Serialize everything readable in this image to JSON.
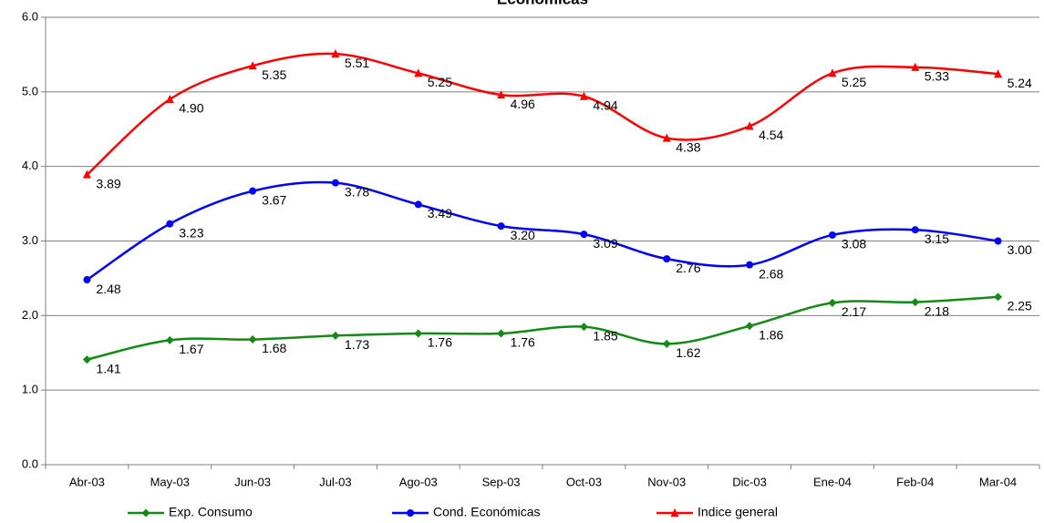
{
  "chart_data": {
    "type": "line",
    "title": "Económicas",
    "categories": [
      "Abr-03",
      "May-03",
      "Jun-03",
      "Jul-03",
      "Ago-03",
      "Sep-03",
      "Oct-03",
      "Nov-03",
      "Dic-03",
      "Ene-04",
      "Feb-04",
      "Mar-04"
    ],
    "series": [
      {
        "name": "Exp. Consumo",
        "color": "#138a13",
        "marker": "diamond",
        "values": [
          1.41,
          1.67,
          1.68,
          1.73,
          1.76,
          1.76,
          1.85,
          1.62,
          1.86,
          2.17,
          2.18,
          2.25
        ],
        "value_labels": [
          "1.41",
          "1.67",
          "1.68",
          "1.73",
          "1.76",
          "1.76",
          "1.85",
          "1.62",
          "1.86",
          "2.17",
          "2.18",
          "2.25"
        ]
      },
      {
        "name": "Cond. Económicas",
        "color": "#0000ff",
        "marker": "circle",
        "values": [
          2.48,
          3.23,
          3.67,
          3.78,
          3.49,
          3.2,
          3.09,
          2.76,
          2.68,
          3.08,
          3.15,
          3.0
        ],
        "value_labels": [
          "2.48",
          "3.23",
          "3.67",
          "3.78",
          "3.49",
          "3.20",
          "3.09",
          "2.76",
          "2.68",
          "3.08",
          "3.15",
          "3.00"
        ]
      },
      {
        "name": "Indice general",
        "color": "#ff0000",
        "marker": "triangle",
        "values": [
          3.89,
          4.9,
          5.35,
          5.51,
          5.25,
          4.96,
          4.94,
          4.38,
          4.54,
          5.25,
          5.33,
          5.24
        ],
        "value_labels": [
          "3.89",
          "4.90",
          "5.35",
          "5.51",
          "5.25",
          "4.96",
          "4.94",
          "4.38",
          "4.54",
          "5.25",
          "5.33",
          "5.24"
        ]
      }
    ],
    "ylim": [
      0,
      6
    ],
    "yticks": [
      {
        "value": 0,
        "label": "0.0"
      },
      {
        "value": 1,
        "label": "1.0"
      },
      {
        "value": 2,
        "label": "2.0"
      },
      {
        "value": 3,
        "label": "3.0"
      },
      {
        "value": 4,
        "label": "4.0"
      },
      {
        "value": 5,
        "label": "5.0"
      },
      {
        "value": 6,
        "label": "6.0"
      }
    ],
    "grid": true,
    "smooth": true,
    "legend": "bottom"
  }
}
